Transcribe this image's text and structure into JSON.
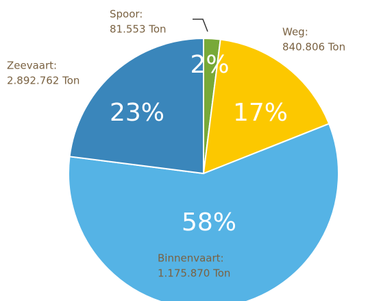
{
  "chart_data": {
    "type": "pie",
    "categories": [
      "Spoor:",
      "Weg:",
      "Zeevaart:",
      "Binnenvaart:"
    ],
    "values": [
      2,
      17,
      58,
      23
    ],
    "value_labels": [
      "2%",
      "17%",
      "58%",
      "23%"
    ],
    "tonnage_labels": [
      "81.553 Ton",
      "840.806 Ton",
      "2.892.762 Ton",
      "1.175.870 Ton"
    ],
    "colors": [
      "#78a938",
      "#fcc800",
      "#55b3e5",
      "#3a86bb"
    ]
  }
}
